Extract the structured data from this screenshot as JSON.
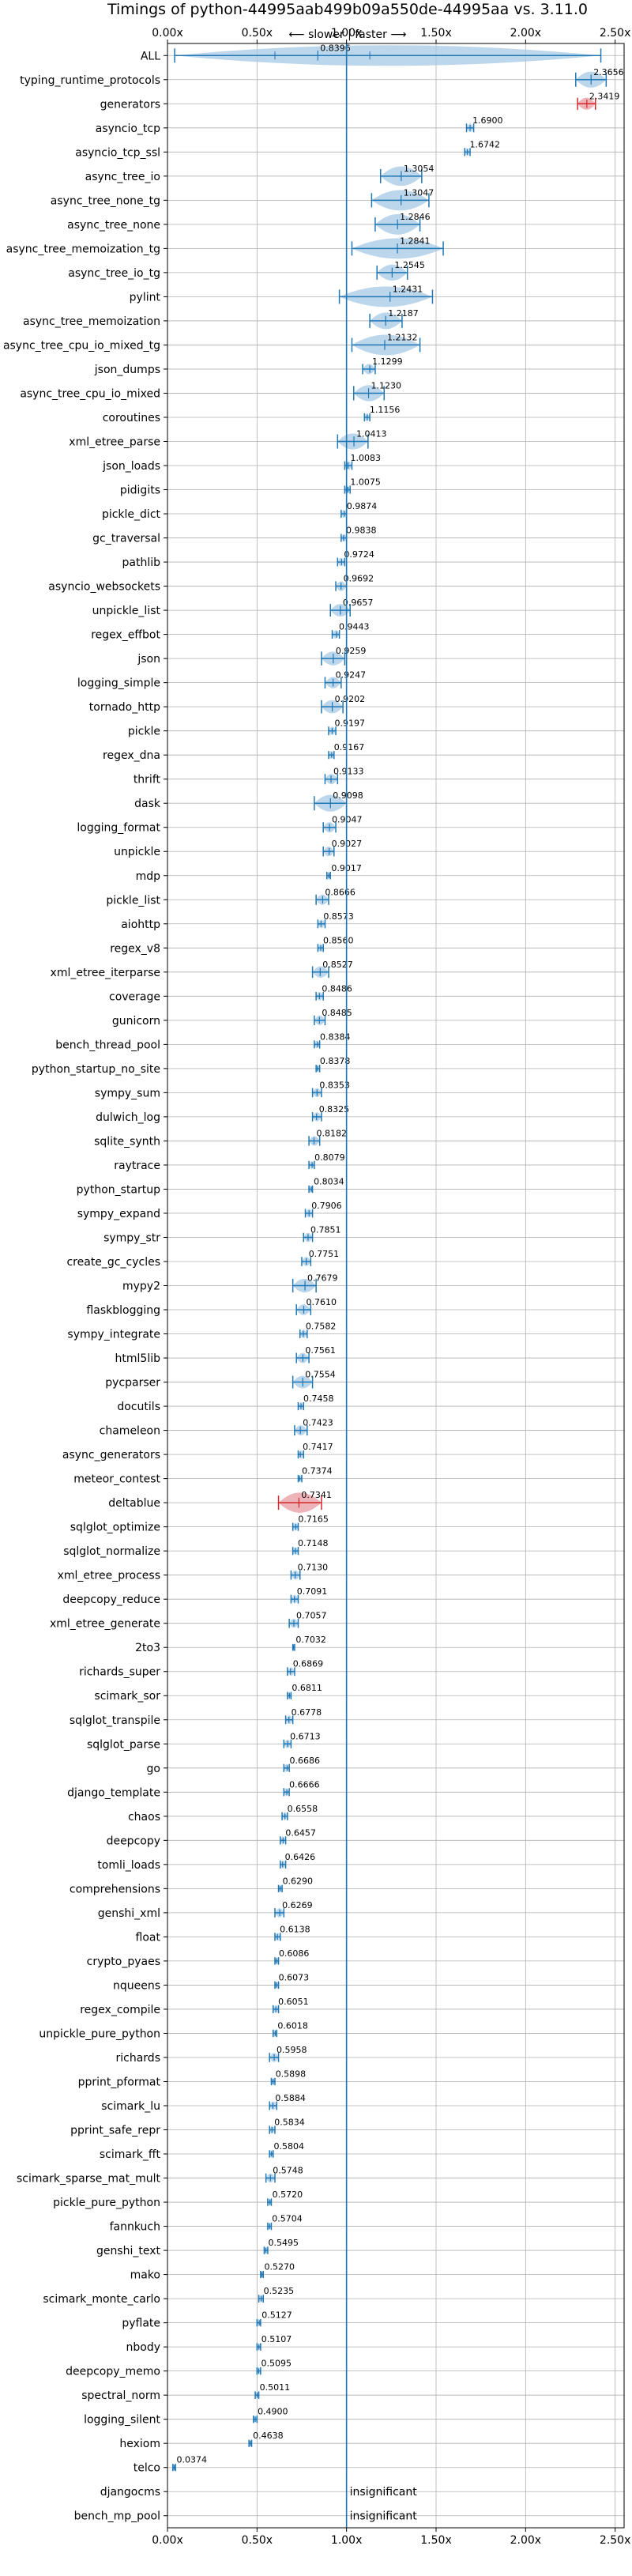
{
  "chart_data": {
    "type": "violin",
    "title": "Timings of python-44995aab499b09a550de-44995aa vs. 3.11.0",
    "subtitle": "⟵ slower | faster ⟶",
    "xlim": [
      0,
      2.55
    ],
    "xticks": [
      0,
      0.5,
      1.0,
      1.5,
      2.0,
      2.5
    ],
    "xtick_labels": [
      "0.00x",
      "0.50x",
      "1.00x",
      "1.50x",
      "2.00x",
      "2.50x"
    ],
    "reference_line": 1.0,
    "grid": true,
    "colors": {
      "normal": "#1f77b4",
      "violin_fill": "#a6c8e4",
      "highlight_fill": "#e8a0a8",
      "highlight_line": "#d62728"
    },
    "benchmarks": [
      {
        "name": "ALL",
        "value": 0.8396,
        "label": "0.8396",
        "low": 0.04,
        "high": 2.42
      },
      {
        "name": "typing_runtime_protocols",
        "value": 2.3656,
        "label": "2.3656",
        "low": 2.28,
        "high": 2.45
      },
      {
        "name": "generators",
        "value": 2.3419,
        "label": "2.3419",
        "low": 2.29,
        "high": 2.39,
        "highlight": true
      },
      {
        "name": "asyncio_tcp",
        "value": 1.69,
        "label": "1.6900",
        "low": 1.67,
        "high": 1.71
      },
      {
        "name": "asyncio_tcp_ssl",
        "value": 1.6742,
        "label": "1.6742",
        "low": 1.66,
        "high": 1.69
      },
      {
        "name": "async_tree_io",
        "value": 1.3054,
        "label": "1.3054",
        "low": 1.19,
        "high": 1.42
      },
      {
        "name": "async_tree_none_tg",
        "value": 1.3047,
        "label": "1.3047",
        "low": 1.14,
        "high": 1.46
      },
      {
        "name": "async_tree_none",
        "value": 1.2846,
        "label": "1.2846",
        "low": 1.16,
        "high": 1.41
      },
      {
        "name": "async_tree_memoization_tg",
        "value": 1.2841,
        "label": "1.2841",
        "low": 1.03,
        "high": 1.54
      },
      {
        "name": "async_tree_io_tg",
        "value": 1.2545,
        "label": "1.2545",
        "low": 1.17,
        "high": 1.34
      },
      {
        "name": "pylint",
        "value": 1.2431,
        "label": "1.2431",
        "low": 0.96,
        "high": 1.48
      },
      {
        "name": "async_tree_memoization",
        "value": 1.2187,
        "label": "1.2187",
        "low": 1.13,
        "high": 1.31
      },
      {
        "name": "async_tree_cpu_io_mixed_tg",
        "value": 1.2132,
        "label": "1.2132",
        "low": 1.03,
        "high": 1.41
      },
      {
        "name": "json_dumps",
        "value": 1.1299,
        "label": "1.1299",
        "low": 1.09,
        "high": 1.16
      },
      {
        "name": "async_tree_cpu_io_mixed",
        "value": 1.123,
        "label": "1.1230",
        "low": 1.04,
        "high": 1.21
      },
      {
        "name": "coroutines",
        "value": 1.1156,
        "label": "1.1156",
        "low": 1.1,
        "high": 1.13
      },
      {
        "name": "xml_etree_parse",
        "value": 1.0413,
        "label": "1.0413",
        "low": 0.95,
        "high": 1.12
      },
      {
        "name": "json_loads",
        "value": 1.0083,
        "label": "1.0083",
        "low": 0.99,
        "high": 1.03
      },
      {
        "name": "pidigits",
        "value": 1.0075,
        "label": "1.0075",
        "low": 0.99,
        "high": 1.02
      },
      {
        "name": "pickle_dict",
        "value": 0.9874,
        "label": "0.9874",
        "low": 0.97,
        "high": 1.0
      },
      {
        "name": "gc_traversal",
        "value": 0.9838,
        "label": "0.9838",
        "low": 0.97,
        "high": 1.0
      },
      {
        "name": "pathlib",
        "value": 0.9724,
        "label": "0.9724",
        "low": 0.95,
        "high": 0.99
      },
      {
        "name": "asyncio_websockets",
        "value": 0.9692,
        "label": "0.9692",
        "low": 0.94,
        "high": 1.0
      },
      {
        "name": "unpickle_list",
        "value": 0.9657,
        "label": "0.9657",
        "low": 0.91,
        "high": 1.02
      },
      {
        "name": "regex_effbot",
        "value": 0.9443,
        "label": "0.9443",
        "low": 0.92,
        "high": 0.96
      },
      {
        "name": "json",
        "value": 0.9259,
        "label": "0.9259",
        "low": 0.86,
        "high": 0.99
      },
      {
        "name": "logging_simple",
        "value": 0.9247,
        "label": "0.9247",
        "low": 0.88,
        "high": 0.97
      },
      {
        "name": "tornado_http",
        "value": 0.9202,
        "label": "0.9202",
        "low": 0.86,
        "high": 0.98
      },
      {
        "name": "pickle",
        "value": 0.9197,
        "label": "0.9197",
        "low": 0.9,
        "high": 0.94
      },
      {
        "name": "regex_dna",
        "value": 0.9167,
        "label": "0.9167",
        "low": 0.9,
        "high": 0.93
      },
      {
        "name": "thrift",
        "value": 0.9133,
        "label": "0.9133",
        "low": 0.88,
        "high": 0.95
      },
      {
        "name": "dask",
        "value": 0.9098,
        "label": "0.9098",
        "low": 0.82,
        "high": 1.0
      },
      {
        "name": "logging_format",
        "value": 0.9047,
        "label": "0.9047",
        "low": 0.87,
        "high": 0.94
      },
      {
        "name": "unpickle",
        "value": 0.9027,
        "label": "0.9027",
        "low": 0.87,
        "high": 0.93
      },
      {
        "name": "mdp",
        "value": 0.9017,
        "label": "0.9017",
        "low": 0.89,
        "high": 0.91
      },
      {
        "name": "pickle_list",
        "value": 0.8666,
        "label": "0.8666",
        "low": 0.83,
        "high": 0.9
      },
      {
        "name": "aiohttp",
        "value": 0.8573,
        "label": "0.8573",
        "low": 0.84,
        "high": 0.88
      },
      {
        "name": "regex_v8",
        "value": 0.856,
        "label": "0.8560",
        "low": 0.84,
        "high": 0.87
      },
      {
        "name": "xml_etree_iterparse",
        "value": 0.8527,
        "label": "0.8527",
        "low": 0.81,
        "high": 0.9
      },
      {
        "name": "coverage",
        "value": 0.8486,
        "label": "0.8486",
        "low": 0.83,
        "high": 0.87
      },
      {
        "name": "gunicorn",
        "value": 0.8485,
        "label": "0.8485",
        "low": 0.82,
        "high": 0.88
      },
      {
        "name": "bench_thread_pool",
        "value": 0.8384,
        "label": "0.8384",
        "low": 0.82,
        "high": 0.85
      },
      {
        "name": "python_startup_no_site",
        "value": 0.8378,
        "label": "0.8378",
        "low": 0.83,
        "high": 0.85
      },
      {
        "name": "sympy_sum",
        "value": 0.8353,
        "label": "0.8353",
        "low": 0.81,
        "high": 0.86
      },
      {
        "name": "dulwich_log",
        "value": 0.8325,
        "label": "0.8325",
        "low": 0.81,
        "high": 0.86
      },
      {
        "name": "sqlite_synth",
        "value": 0.8182,
        "label": "0.8182",
        "low": 0.79,
        "high": 0.85
      },
      {
        "name": "raytrace",
        "value": 0.8079,
        "label": "0.8079",
        "low": 0.79,
        "high": 0.82
      },
      {
        "name": "python_startup",
        "value": 0.8034,
        "label": "0.8034",
        "low": 0.79,
        "high": 0.81
      },
      {
        "name": "sympy_expand",
        "value": 0.7906,
        "label": "0.7906",
        "low": 0.77,
        "high": 0.81
      },
      {
        "name": "sympy_str",
        "value": 0.7851,
        "label": "0.7851",
        "low": 0.76,
        "high": 0.81
      },
      {
        "name": "create_gc_cycles",
        "value": 0.7751,
        "label": "0.7751",
        "low": 0.75,
        "high": 0.8
      },
      {
        "name": "mypy2",
        "value": 0.7679,
        "label": "0.7679",
        "low": 0.7,
        "high": 0.83
      },
      {
        "name": "flaskblogging",
        "value": 0.761,
        "label": "0.7610",
        "low": 0.72,
        "high": 0.8
      },
      {
        "name": "sympy_integrate",
        "value": 0.7582,
        "label": "0.7582",
        "low": 0.74,
        "high": 0.78
      },
      {
        "name": "html5lib",
        "value": 0.7561,
        "label": "0.7561",
        "low": 0.72,
        "high": 0.79
      },
      {
        "name": "pycparser",
        "value": 0.7554,
        "label": "0.7554",
        "low": 0.7,
        "high": 0.81
      },
      {
        "name": "docutils",
        "value": 0.7458,
        "label": "0.7458",
        "low": 0.73,
        "high": 0.76
      },
      {
        "name": "chameleon",
        "value": 0.7423,
        "label": "0.7423",
        "low": 0.71,
        "high": 0.78
      },
      {
        "name": "async_generators",
        "value": 0.7417,
        "label": "0.7417",
        "low": 0.73,
        "high": 0.76
      },
      {
        "name": "meteor_contest",
        "value": 0.7374,
        "label": "0.7374",
        "low": 0.73,
        "high": 0.75
      },
      {
        "name": "deltablue",
        "value": 0.7341,
        "label": "0.7341",
        "low": 0.62,
        "high": 0.86,
        "highlight": true
      },
      {
        "name": "sqlglot_optimize",
        "value": 0.7165,
        "label": "0.7165",
        "low": 0.7,
        "high": 0.73
      },
      {
        "name": "sqlglot_normalize",
        "value": 0.7148,
        "label": "0.7148",
        "low": 0.7,
        "high": 0.73
      },
      {
        "name": "xml_etree_process",
        "value": 0.713,
        "label": "0.7130",
        "low": 0.69,
        "high": 0.74
      },
      {
        "name": "deepcopy_reduce",
        "value": 0.7091,
        "label": "0.7091",
        "low": 0.69,
        "high": 0.73
      },
      {
        "name": "xml_etree_generate",
        "value": 0.7057,
        "label": "0.7057",
        "low": 0.68,
        "high": 0.73
      },
      {
        "name": "2to3",
        "value": 0.7032,
        "label": "0.7032",
        "low": 0.7,
        "high": 0.71
      },
      {
        "name": "richards_super",
        "value": 0.6869,
        "label": "0.6869",
        "low": 0.67,
        "high": 0.71
      },
      {
        "name": "scimark_sor",
        "value": 0.6811,
        "label": "0.6811",
        "low": 0.67,
        "high": 0.69
      },
      {
        "name": "sqlglot_transpile",
        "value": 0.6778,
        "label": "0.6778",
        "low": 0.66,
        "high": 0.7
      },
      {
        "name": "sqlglot_parse",
        "value": 0.6713,
        "label": "0.6713",
        "low": 0.65,
        "high": 0.69
      },
      {
        "name": "go",
        "value": 0.6686,
        "label": "0.6686",
        "low": 0.65,
        "high": 0.68
      },
      {
        "name": "django_template",
        "value": 0.6666,
        "label": "0.6666",
        "low": 0.65,
        "high": 0.68
      },
      {
        "name": "chaos",
        "value": 0.6558,
        "label": "0.6558",
        "low": 0.64,
        "high": 0.67
      },
      {
        "name": "deepcopy",
        "value": 0.6457,
        "label": "0.6457",
        "low": 0.63,
        "high": 0.66
      },
      {
        "name": "tomli_loads",
        "value": 0.6426,
        "label": "0.6426",
        "low": 0.63,
        "high": 0.66
      },
      {
        "name": "comprehensions",
        "value": 0.629,
        "label": "0.6290",
        "low": 0.62,
        "high": 0.64
      },
      {
        "name": "genshi_xml",
        "value": 0.6269,
        "label": "0.6269",
        "low": 0.6,
        "high": 0.65
      },
      {
        "name": "float",
        "value": 0.6138,
        "label": "0.6138",
        "low": 0.6,
        "high": 0.63
      },
      {
        "name": "crypto_pyaes",
        "value": 0.6086,
        "label": "0.6086",
        "low": 0.6,
        "high": 0.62
      },
      {
        "name": "nqueens",
        "value": 0.6073,
        "label": "0.6073",
        "low": 0.6,
        "high": 0.62
      },
      {
        "name": "regex_compile",
        "value": 0.6051,
        "label": "0.6051",
        "low": 0.59,
        "high": 0.62
      },
      {
        "name": "unpickle_pure_python",
        "value": 0.6018,
        "label": "0.6018",
        "low": 0.59,
        "high": 0.61
      },
      {
        "name": "richards",
        "value": 0.5958,
        "label": "0.5958",
        "low": 0.57,
        "high": 0.62
      },
      {
        "name": "pprint_pformat",
        "value": 0.5898,
        "label": "0.5898",
        "low": 0.58,
        "high": 0.6
      },
      {
        "name": "scimark_lu",
        "value": 0.5884,
        "label": "0.5884",
        "low": 0.57,
        "high": 0.61
      },
      {
        "name": "pprint_safe_repr",
        "value": 0.5834,
        "label": "0.5834",
        "low": 0.57,
        "high": 0.6
      },
      {
        "name": "scimark_fft",
        "value": 0.5804,
        "label": "0.5804",
        "low": 0.57,
        "high": 0.59
      },
      {
        "name": "scimark_sparse_mat_mult",
        "value": 0.5748,
        "label": "0.5748",
        "low": 0.55,
        "high": 0.6
      },
      {
        "name": "pickle_pure_python",
        "value": 0.572,
        "label": "0.5720",
        "low": 0.56,
        "high": 0.58
      },
      {
        "name": "fannkuch",
        "value": 0.5704,
        "label": "0.5704",
        "low": 0.56,
        "high": 0.58
      },
      {
        "name": "genshi_text",
        "value": 0.5495,
        "label": "0.5495",
        "low": 0.54,
        "high": 0.56
      },
      {
        "name": "mako",
        "value": 0.527,
        "label": "0.5270",
        "low": 0.52,
        "high": 0.535
      },
      {
        "name": "scimark_monte_carlo",
        "value": 0.5235,
        "label": "0.5235",
        "low": 0.51,
        "high": 0.535
      },
      {
        "name": "pyflate",
        "value": 0.5127,
        "label": "0.5127",
        "low": 0.5,
        "high": 0.52
      },
      {
        "name": "nbody",
        "value": 0.5107,
        "label": "0.5107",
        "low": 0.5,
        "high": 0.52
      },
      {
        "name": "deepcopy_memo",
        "value": 0.5095,
        "label": "0.5095",
        "low": 0.5,
        "high": 0.52
      },
      {
        "name": "spectral_norm",
        "value": 0.5011,
        "label": "0.5011",
        "low": 0.49,
        "high": 0.51
      },
      {
        "name": "logging_silent",
        "value": 0.49,
        "label": "0.4900",
        "low": 0.48,
        "high": 0.5
      },
      {
        "name": "hexiom",
        "value": 0.4638,
        "label": "0.4638",
        "low": 0.455,
        "high": 0.47
      },
      {
        "name": "telco",
        "value": 0.0374,
        "label": "0.0374",
        "low": 0.03,
        "high": 0.045
      },
      {
        "name": "djangocms",
        "value": null,
        "label": "insignificant"
      },
      {
        "name": "bench_mp_pool",
        "value": null,
        "label": "insignificant"
      }
    ]
  }
}
